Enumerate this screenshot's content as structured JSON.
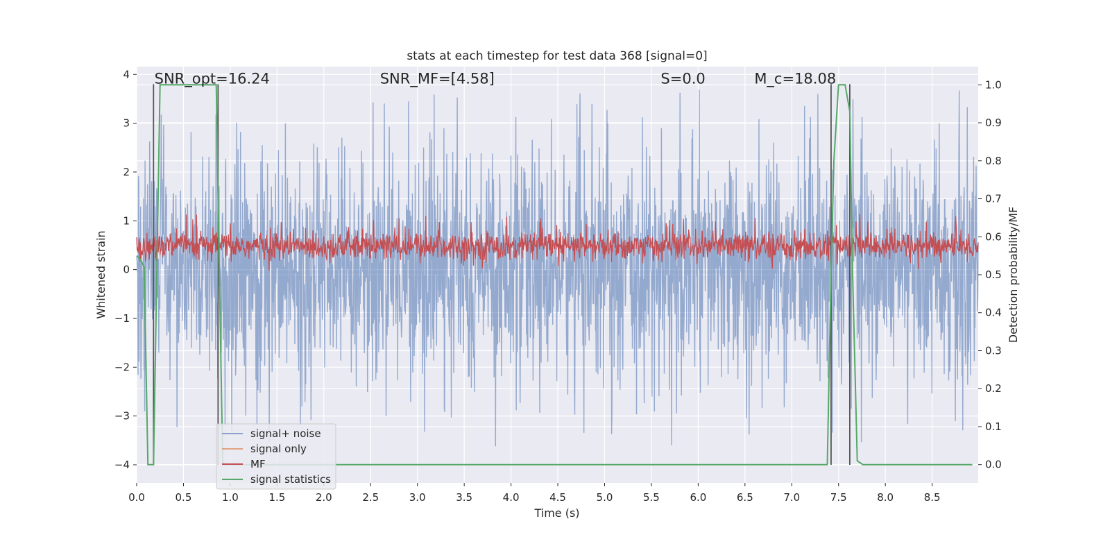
{
  "chart_data": {
    "type": "line",
    "title": "stats at each timestep for test data 368 [signal=0]",
    "xlabel": "Time (s)",
    "ylabel_left": "Whitened strain",
    "ylabel_right": "Detection probability/MF",
    "xlim": [
      0.0,
      8.992
    ],
    "ylim_left": [
      -4.37,
      4.16
    ],
    "ylim_right": [
      -0.048,
      1.048
    ],
    "x_ticks": [
      "0.0",
      "0.5",
      "1.0",
      "1.5",
      "2.0",
      "2.5",
      "3.0",
      "3.5",
      "4.0",
      "4.5",
      "5.0",
      "5.5",
      "6.0",
      "6.5",
      "7.0",
      "7.5",
      "8.0",
      "8.5"
    ],
    "y_ticks_left": [
      "−4",
      "−3",
      "−2",
      "−1",
      "0",
      "1",
      "2",
      "3",
      "4"
    ],
    "y_ticks_right": [
      "0.0",
      "0.1",
      "0.2",
      "0.3",
      "0.4",
      "0.5",
      "0.6",
      "0.7",
      "0.8",
      "0.9",
      "1.0"
    ],
    "grid": true,
    "legend_position": "lower-left",
    "annotations": [
      {
        "prefix": "SNR_opt=",
        "value": "16.24",
        "x": 0.19,
        "y": 3.8
      },
      {
        "prefix": "SNR_MF=",
        "value": "[4.58]",
        "x": 2.6,
        "y": 3.8
      },
      {
        "prefix": "S=",
        "value": "0.0",
        "x": 5.6,
        "y": 3.8
      },
      {
        "prefix": "M_c=",
        "value": "18.08",
        "x": 6.6,
        "y": 3.8
      }
    ],
    "vertical_markers": [
      {
        "x": 0.18,
        "y_from": -4.0,
        "y_to": 3.8
      },
      {
        "x": 0.87,
        "y_from": -4.0,
        "y_to": 3.8
      },
      {
        "x": 7.42,
        "y_from": -4.0,
        "y_to": 3.8
      },
      {
        "x": 7.62,
        "y_from": -4.0,
        "y_to": 3.8
      }
    ],
    "series": [
      {
        "name": "signal+ noise",
        "axis": "left",
        "color": "#4c72b0",
        "opacity": 0.5,
        "description_samples": 4096,
        "amplitude_range": [
          -3.9,
          3.8
        ]
      },
      {
        "name": "signal only",
        "axis": "left",
        "color": "#dd8452",
        "values": []
      },
      {
        "name": "MF",
        "axis": "right",
        "color": "#c44e52",
        "amplitude_range": [
          0.52,
          0.63
        ]
      },
      {
        "name": "signal statistics",
        "axis": "right",
        "color": "#55a868",
        "x": [
          0.0,
          0.04,
          0.08,
          0.12,
          0.18,
          0.25,
          0.3,
          0.85,
          0.88,
          0.92,
          0.96,
          7.35,
          7.38,
          7.42,
          7.45,
          7.5,
          7.57,
          7.62,
          7.65,
          7.7,
          7.76,
          8.93
        ],
        "y": [
          0.55,
          0.54,
          0.52,
          0.0,
          0.0,
          1.0,
          1.0,
          1.0,
          0.55,
          0.0,
          0.0,
          0.0,
          0.0,
          0.5,
          0.8,
          1.0,
          1.0,
          0.93,
          0.5,
          0.01,
          0.0,
          0.0
        ]
      }
    ]
  }
}
